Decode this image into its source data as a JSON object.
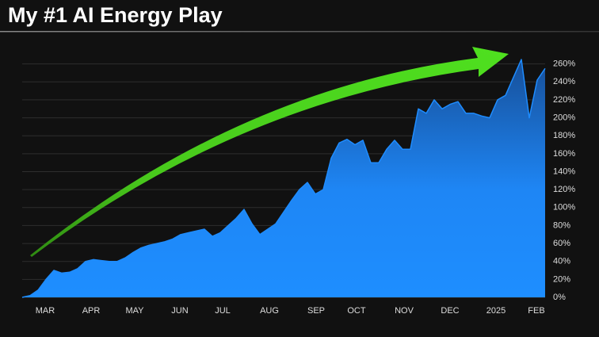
{
  "chart_data": {
    "type": "area",
    "title": "My #1 AI Energy Play",
    "values": [
      0,
      2,
      8,
      20,
      30,
      27,
      28,
      32,
      40,
      42,
      41,
      40,
      40,
      44,
      50,
      55,
      58,
      60,
      62,
      65,
      70,
      72,
      74,
      76,
      68,
      72,
      80,
      88,
      98,
      82,
      70,
      76,
      82,
      95,
      108,
      120,
      128,
      115,
      120,
      155,
      172,
      176,
      170,
      175,
      150,
      150,
      165,
      175,
      165,
      165,
      210,
      205,
      220,
      210,
      215,
      218,
      205,
      205,
      202,
      200,
      220,
      225,
      245,
      265,
      200,
      242,
      255
    ],
    "color": "#1e8cff",
    "xlim": [
      0,
      66
    ],
    "xticks": [
      {
        "value": 2.9,
        "label": "MAR"
      },
      {
        "value": 8.7,
        "label": "APR"
      },
      {
        "value": 14.2,
        "label": "MAY"
      },
      {
        "value": 19.9,
        "label": "JUN"
      },
      {
        "value": 25.3,
        "label": "JUL"
      },
      {
        "value": 31.2,
        "label": "AUG"
      },
      {
        "value": 37.1,
        "label": "SEP"
      },
      {
        "value": 42.2,
        "label": "OCT"
      },
      {
        "value": 48.2,
        "label": "NOV"
      },
      {
        "value": 54,
        "label": "DEC"
      },
      {
        "value": 59.8,
        "label": "2025"
      },
      {
        "value": 64.9,
        "label": "FEB"
      }
    ],
    "ylim": [
      0,
      280
    ],
    "yticks": [
      {
        "value": 0,
        "label": "0%"
      },
      {
        "value": 20,
        "label": "20%"
      },
      {
        "value": 40,
        "label": "40%"
      },
      {
        "value": 60,
        "label": "60%"
      },
      {
        "value": 80,
        "label": "80%"
      },
      {
        "value": 100,
        "label": "100%"
      },
      {
        "value": 120,
        "label": "120%"
      },
      {
        "value": 140,
        "label": "140%"
      },
      {
        "value": 160,
        "label": "160%"
      },
      {
        "value": 180,
        "label": "180%"
      },
      {
        "value": 200,
        "label": "200%"
      },
      {
        "value": 220,
        "label": "220%"
      },
      {
        "value": 240,
        "label": "240%"
      },
      {
        "value": 260,
        "label": "260%"
      }
    ],
    "grid": true
  }
}
